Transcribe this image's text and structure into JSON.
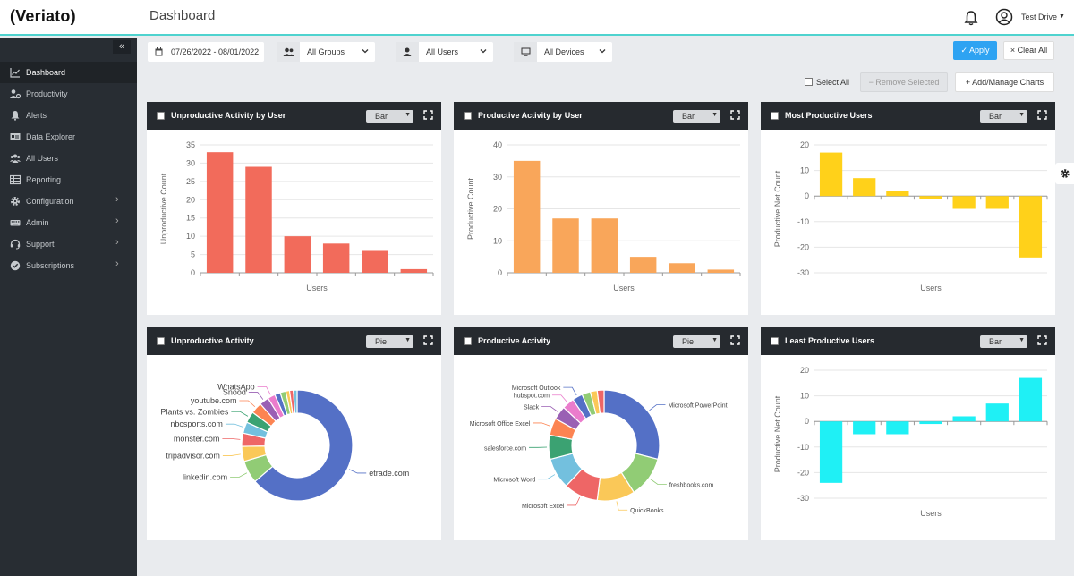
{
  "app": {
    "logo": "(Veriato)",
    "page_title": "Dashboard",
    "user_name": "Test Drive"
  },
  "sidebar": {
    "collapse_label": "«",
    "items": [
      {
        "label": "Dashboard",
        "icon": "line-chart-icon",
        "active": true,
        "has_children": false
      },
      {
        "label": "Productivity",
        "icon": "users-gear-icon",
        "active": false,
        "has_children": false
      },
      {
        "label": "Alerts",
        "icon": "bell-icon",
        "active": false,
        "has_children": false
      },
      {
        "label": "Data Explorer",
        "icon": "id-card-icon",
        "active": false,
        "has_children": false
      },
      {
        "label": "All Users",
        "icon": "users-icon",
        "active": false,
        "has_children": false
      },
      {
        "label": "Reporting",
        "icon": "table-icon",
        "active": false,
        "has_children": false
      },
      {
        "label": "Configuration",
        "icon": "gear-icon",
        "active": false,
        "has_children": true
      },
      {
        "label": "Admin",
        "icon": "keyboard-icon",
        "active": false,
        "has_children": true
      },
      {
        "label": "Support",
        "icon": "headset-icon",
        "active": false,
        "has_children": true
      },
      {
        "label": "Subscriptions",
        "icon": "check-circle-icon",
        "active": false,
        "has_children": true
      }
    ]
  },
  "filters": {
    "date_range": "07/26/2022 - 08/01/2022",
    "groups": "All Groups",
    "users": "All Users",
    "devices": "All Devices",
    "apply_label": "✓ Apply",
    "clear_label": "× Clear All"
  },
  "toolbar": {
    "select_all_label": "Select All",
    "remove_selected_label": "−  Remove Selected",
    "add_manage_label": "+  Add/Manage Charts"
  },
  "cards": [
    {
      "title": "Unproductive Activity by User",
      "type_label": "Bar"
    },
    {
      "title": "Productive Activity by User",
      "type_label": "Bar"
    },
    {
      "title": "Most Productive Users",
      "type_label": "Bar"
    },
    {
      "title": "Unproductive Activity",
      "type_label": "Pie"
    },
    {
      "title": "Productive Activity",
      "type_label": "Pie"
    },
    {
      "title": "Least Productive Users",
      "type_label": "Bar"
    }
  ],
  "chart_data": [
    {
      "type": "bar",
      "title": "Unproductive Activity by User",
      "xlabel": "Users",
      "ylabel": "Unproductive Count",
      "ylim": [
        0,
        35
      ],
      "yticks": [
        0,
        5,
        10,
        15,
        20,
        25,
        30,
        35
      ],
      "values": [
        33,
        29,
        10,
        8,
        6,
        1
      ],
      "color": "#f26b5b",
      "grid": true
    },
    {
      "type": "bar",
      "title": "Productive Activity by User",
      "xlabel": "Users",
      "ylabel": "Productive Count",
      "ylim": [
        0,
        40
      ],
      "yticks": [
        0,
        10,
        20,
        30,
        40
      ],
      "values": [
        35,
        17,
        17,
        5,
        3,
        1
      ],
      "color": "#f9a65a",
      "grid": true
    },
    {
      "type": "bar",
      "title": "Most Productive Users",
      "xlabel": "Users",
      "ylabel": "Productive Net Count",
      "ylim": [
        -30,
        20
      ],
      "yticks": [
        -30,
        -20,
        -10,
        0,
        10,
        20
      ],
      "values": [
        17,
        7,
        2,
        -1,
        -5,
        -5,
        -24
      ],
      "color": "#ffd11a",
      "grid": true
    },
    {
      "type": "pie",
      "title": "Unproductive Activity",
      "donut": true,
      "slices": [
        {
          "label": "etrade.com",
          "value": 58,
          "color": "#5470c6"
        },
        {
          "label": "linkedin.com",
          "value": 6,
          "color": "#91cc75"
        },
        {
          "label": "tripadvisor.com",
          "value": 4,
          "color": "#fac858"
        },
        {
          "label": "monster.com",
          "value": 3.5,
          "color": "#ee6666"
        },
        {
          "label": "nbcsports.com",
          "value": 3,
          "color": "#73c0de"
        },
        {
          "label": "Plants vs. Zombies",
          "value": 3,
          "color": "#3ba272"
        },
        {
          "label": "youtube.com",
          "value": 3,
          "color": "#fc8452"
        },
        {
          "label": "Snood",
          "value": 2.5,
          "color": "#9a60b4"
        },
        {
          "label": "WhatsApp",
          "value": 2,
          "color": "#ea7ccc"
        },
        {
          "label": "",
          "value": 1.5,
          "color": "#5470c6"
        },
        {
          "label": "",
          "value": 1.5,
          "color": "#91cc75"
        },
        {
          "label": "",
          "value": 1,
          "color": "#fac858"
        },
        {
          "label": "",
          "value": 1,
          "color": "#ee6666"
        },
        {
          "label": "",
          "value": 1,
          "color": "#73c0de"
        }
      ]
    },
    {
      "type": "pie",
      "title": "Productive Activity",
      "donut": true,
      "slices": [
        {
          "label": "Microsoft PowerPoint",
          "value": 29,
          "color": "#5470c6"
        },
        {
          "label": "freshbooks.com",
          "value": 12,
          "color": "#91cc75"
        },
        {
          "label": "QuickBooks",
          "value": 11,
          "color": "#fac858"
        },
        {
          "label": "Microsoft Excel",
          "value": 10,
          "color": "#ee6666"
        },
        {
          "label": "Microsoft Word",
          "value": 9,
          "color": "#73c0de"
        },
        {
          "label": "salesforce.com",
          "value": 7,
          "color": "#3ba272"
        },
        {
          "label": "Microsoft Office Excel",
          "value": 5,
          "color": "#fc8452"
        },
        {
          "label": "Slack",
          "value": 4,
          "color": "#9a60b4"
        },
        {
          "label": "hubspot.com",
          "value": 3.5,
          "color": "#ea7ccc"
        },
        {
          "label": "Microsoft Outlook",
          "value": 3,
          "color": "#5470c6"
        },
        {
          "label": "",
          "value": 2.5,
          "color": "#91cc75"
        },
        {
          "label": "",
          "value": 2,
          "color": "#fac858"
        },
        {
          "label": "",
          "value": 2,
          "color": "#ee6666"
        }
      ]
    },
    {
      "type": "bar",
      "title": "Least Productive Users",
      "xlabel": "Users",
      "ylabel": "Productive Net Count",
      "ylim": [
        -30,
        20
      ],
      "yticks": [
        -30,
        -20,
        -10,
        0,
        10,
        20
      ],
      "values": [
        -24,
        -5,
        -5,
        -1,
        2,
        7,
        17
      ],
      "color": "#1ff0f5",
      "grid": true
    }
  ]
}
